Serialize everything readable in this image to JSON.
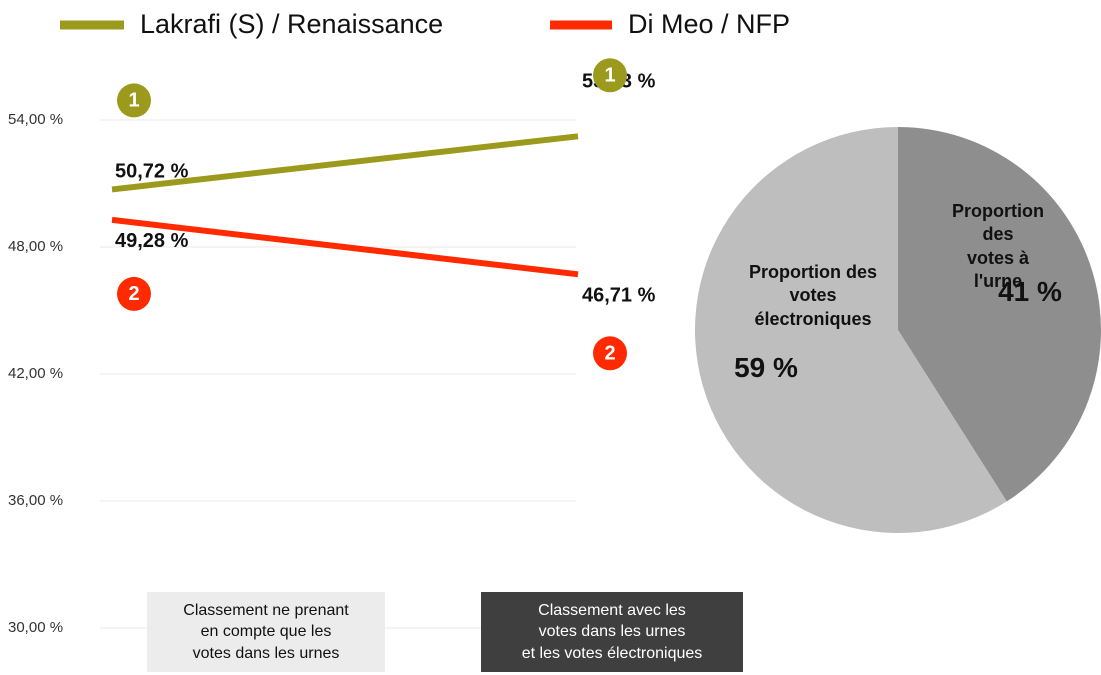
{
  "chart_data": [
    {
      "type": "line",
      "categories": [
        "Classement ne prenant\nen compte que les\nvotes dans les urnes",
        "Classement avec les\nvotes dans les urnes\net les votes électroniques"
      ],
      "series": [
        {
          "name": "Lakrafi (S) / Renaissance",
          "color": "#9c9a1c",
          "values": [
            50.72,
            53.23
          ],
          "value_labels": [
            "50,72 %",
            "53,23 %"
          ],
          "ranks": [
            1,
            1
          ]
        },
        {
          "name": "Di Meo / NFP",
          "color": "#ff2a00",
          "values": [
            49.28,
            46.71
          ],
          "value_labels": [
            "49,28 %",
            "46,71 %"
          ],
          "ranks": [
            2,
            2
          ]
        }
      ],
      "ylim": [
        30,
        56
      ],
      "yticks": [
        {
          "value": 30,
          "label": "30,00 %"
        },
        {
          "value": 36,
          "label": "36,00 %"
        },
        {
          "value": 42,
          "label": "42,00 %"
        },
        {
          "value": 48,
          "label": "48,00 %"
        },
        {
          "value": 54,
          "label": "54,00 %"
        }
      ],
      "grid": true
    },
    {
      "type": "pie",
      "categories": [
        "Proportion des\nvotes à l'urne",
        "Proportion des\nvotes\nélectroniques"
      ],
      "values": [
        41,
        59
      ],
      "value_labels": [
        "41 %",
        "59 %"
      ],
      "colors": [
        "#8e8e8e",
        "#bebebe"
      ]
    }
  ]
}
